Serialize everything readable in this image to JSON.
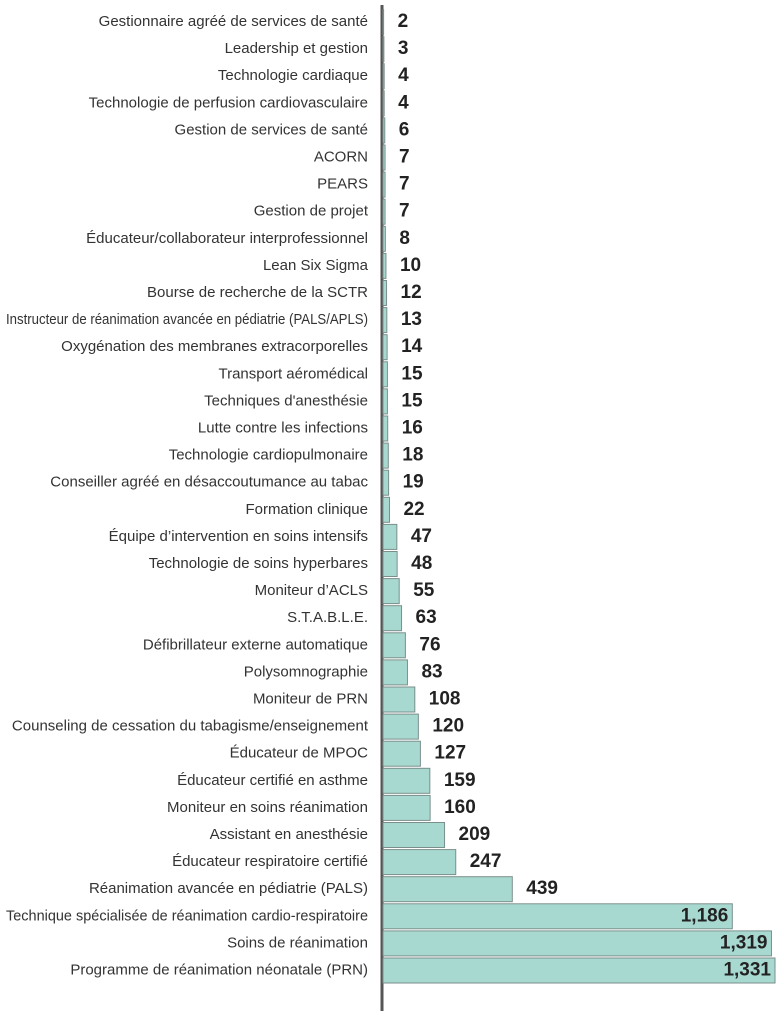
{
  "chart_data": {
    "type": "barh",
    "color": "#a8d9d1",
    "categories": [
      "Gestionnaire agréé de services de santé",
      "Leadership et gestion",
      "Technologie cardiaque",
      "Technologie de perfusion cardiovasculaire",
      "Gestion de services de santé",
      "ACORN",
      "PEARS",
      "Gestion de projet",
      "Éducateur/collaborateur interprofessionnel",
      "Lean Six Sigma",
      "Bourse de recherche de la SCTR",
      "Instructeur de réanimation avancée en pédiatrie (PALS/APLS)",
      "Oxygénation des membranes extracorporelles",
      "Transport aéromédical",
      "Techniques d'anesthésie",
      "Lutte contre les infections",
      "Technologie cardiopulmonaire",
      "Conseiller agréé en désaccoutumance au tabac",
      "Formation clinique",
      "Équipe d’intervention en soins intensifs",
      "Technologie de soins hyperbares",
      "Moniteur d’ACLS",
      "S.T.A.B.L.E.",
      "Défibrillateur externe automatique",
      "Polysomnographie",
      "Moniteur de PRN",
      "Counseling de cessation du tabagisme/enseignement",
      "Éducateur de MPOC",
      "Éducateur certifié en asthme",
      "Moniteur en soins réanimation",
      "Assistant en anesthésie",
      "Éducateur respiratoire certifié",
      "Réanimation avancée en pédiatrie (PALS)",
      "Technique spécialisée de réanimation cardio-respiratoire",
      "Soins de réanimation",
      "Programme de réanimation néonatale (PRN)"
    ],
    "values": [
      2,
      3,
      4,
      4,
      6,
      7,
      7,
      7,
      8,
      10,
      12,
      13,
      14,
      15,
      15,
      16,
      18,
      19,
      22,
      47,
      48,
      55,
      63,
      76,
      83,
      108,
      120,
      127,
      159,
      160,
      209,
      247,
      439,
      1186,
      1319,
      1331
    ],
    "value_labels": [
      "2",
      "3",
      "4",
      "4",
      "6",
      "7",
      "7",
      "7",
      "8",
      "10",
      "12",
      "13",
      "14",
      "15",
      "15",
      "16",
      "18",
      "19",
      "22",
      "47",
      "48",
      "55",
      "63",
      "76",
      "83",
      "108",
      "120",
      "127",
      "159",
      "160",
      "209",
      "247",
      "439",
      "1,186",
      "1,319",
      "1,331"
    ]
  }
}
